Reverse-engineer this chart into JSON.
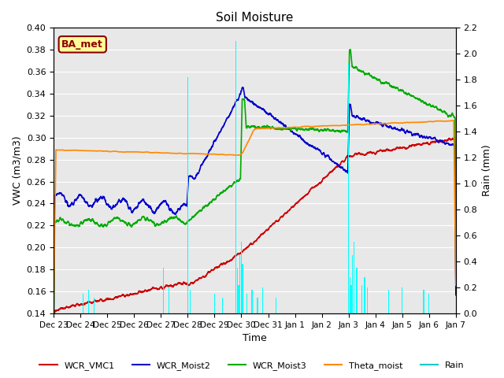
{
  "title": "Soil Moisture",
  "ylabel_left": "VWC (m3/m3)",
  "ylabel_right": "Rain (mm)",
  "xlabel": "Time",
  "ylim_left": [
    0.14,
    0.4
  ],
  "ylim_right": [
    0.0,
    2.2
  ],
  "yticks_left": [
    0.14,
    0.16,
    0.18,
    0.2,
    0.22,
    0.24,
    0.26,
    0.28,
    0.3,
    0.32,
    0.34,
    0.36,
    0.38,
    0.4
  ],
  "yticks_right": [
    0.0,
    0.2,
    0.4,
    0.6,
    0.8,
    1.0,
    1.2,
    1.4,
    1.6,
    1.8,
    2.0,
    2.2
  ],
  "axes_bg_color": "#e8e8e8",
  "grid_color": "#ffffff",
  "label_box_text": "BA_met",
  "legend_entries": [
    "WCR_VMC1",
    "WCR_Moist2",
    "WCR_Moist3",
    "Theta_moist",
    "Rain"
  ],
  "line_colors": [
    "#cc0000",
    "#0000cc",
    "#00aa00",
    "#ff8800",
    "#00cccc"
  ],
  "fig_bg_color": "#ffffff"
}
